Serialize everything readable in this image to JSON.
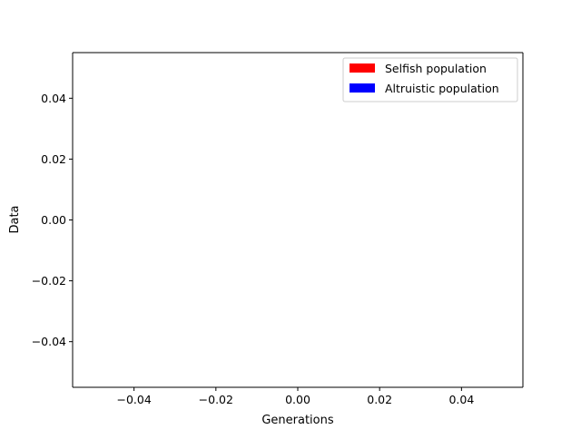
{
  "chart_data": {
    "type": "line",
    "title": "",
    "xlabel": "Generations",
    "ylabel": "Data",
    "xlim": [
      -0.055,
      0.055
    ],
    "ylim": [
      -0.055,
      0.055
    ],
    "xticks": [
      -0.04,
      -0.02,
      0.0,
      0.02,
      0.04
    ],
    "yticks": [
      -0.04,
      -0.02,
      0.0,
      0.02,
      0.04
    ],
    "xtick_labels": [
      "−0.04",
      "−0.02",
      "0.00",
      "0.02",
      "0.04"
    ],
    "ytick_labels": [
      "−0.04",
      "−0.02",
      "0.00",
      "0.02",
      "0.04"
    ],
    "grid": false,
    "legend_position": "top-right",
    "series": [
      {
        "name": "Selfish population",
        "color": "#ff0000",
        "x": [],
        "y": []
      },
      {
        "name": "Altruistic population",
        "color": "#0000ff",
        "x": [],
        "y": []
      }
    ]
  }
}
